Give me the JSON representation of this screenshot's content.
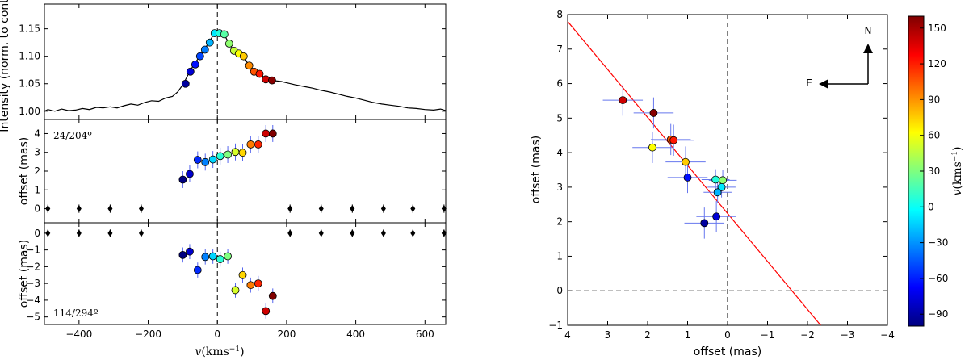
{
  "chart_data": [
    {
      "type": "line",
      "panel": "spectrum",
      "ylabel": "Intensity (norm. to cont.)",
      "xlim": [
        -500,
        660
      ],
      "ylim": [
        0.985,
        1.195
      ],
      "yticks": [
        1.0,
        1.05,
        1.1,
        1.15
      ],
      "ytick_labels": [
        "1.00",
        "1.05",
        "1.10",
        "1.15"
      ],
      "vline_x": 0,
      "profile": [
        [
          -500,
          1.0
        ],
        [
          -490,
          1.003
        ],
        [
          -470,
          1.0
        ],
        [
          -450,
          1.004
        ],
        [
          -430,
          1.001
        ],
        [
          -410,
          1.002
        ],
        [
          -390,
          1.005
        ],
        [
          -370,
          1.003
        ],
        [
          -350,
          1.007
        ],
        [
          -330,
          1.006
        ],
        [
          -310,
          1.008
        ],
        [
          -290,
          1.006
        ],
        [
          -270,
          1.01
        ],
        [
          -250,
          1.013
        ],
        [
          -230,
          1.011
        ],
        [
          -210,
          1.016
        ],
        [
          -190,
          1.019
        ],
        [
          -170,
          1.018
        ],
        [
          -150,
          1.024
        ],
        [
          -130,
          1.027
        ],
        [
          -115,
          1.035
        ],
        [
          -100,
          1.048
        ],
        [
          -90,
          1.06
        ],
        [
          -80,
          1.072
        ],
        [
          -65,
          1.088
        ],
        [
          -50,
          1.1
        ],
        [
          -35,
          1.115
        ],
        [
          -20,
          1.13
        ],
        [
          -8,
          1.143
        ],
        [
          5,
          1.145
        ],
        [
          18,
          1.142
        ],
        [
          32,
          1.125
        ],
        [
          48,
          1.11
        ],
        [
          62,
          1.106
        ],
        [
          76,
          1.1
        ],
        [
          90,
          1.084
        ],
        [
          105,
          1.075
        ],
        [
          120,
          1.068
        ],
        [
          140,
          1.06
        ],
        [
          160,
          1.056
        ],
        [
          185,
          1.054
        ],
        [
          205,
          1.051
        ],
        [
          225,
          1.048
        ],
        [
          250,
          1.045
        ],
        [
          275,
          1.042
        ],
        [
          300,
          1.038
        ],
        [
          325,
          1.035
        ],
        [
          350,
          1.031
        ],
        [
          375,
          1.027
        ],
        [
          400,
          1.024
        ],
        [
          425,
          1.02
        ],
        [
          450,
          1.016
        ],
        [
          475,
          1.013
        ],
        [
          500,
          1.011
        ],
        [
          525,
          1.009
        ],
        [
          550,
          1.006
        ],
        [
          575,
          1.005
        ],
        [
          600,
          1.003
        ],
        [
          625,
          1.002
        ],
        [
          645,
          1.004
        ],
        [
          660,
          1.001
        ]
      ],
      "points": [
        [
          -92,
          1.05
        ],
        [
          -78,
          1.072
        ],
        [
          -64,
          1.085
        ],
        [
          -50,
          1.1
        ],
        [
          -36,
          1.112
        ],
        [
          -22,
          1.125
        ],
        [
          -8,
          1.142
        ],
        [
          6,
          1.142
        ],
        [
          20,
          1.14
        ],
        [
          34,
          1.123
        ],
        [
          48,
          1.11
        ],
        [
          62,
          1.105
        ],
        [
          76,
          1.1
        ],
        [
          92,
          1.083
        ],
        [
          106,
          1.072
        ],
        [
          122,
          1.068
        ],
        [
          140,
          1.058
        ],
        [
          158,
          1.056
        ]
      ],
      "point_v": [
        -92,
        -78,
        -64,
        -50,
        -36,
        -22,
        -8,
        6,
        20,
        34,
        48,
        62,
        76,
        92,
        106,
        122,
        140,
        158
      ]
    },
    {
      "type": "scatter",
      "panel": "offset-24",
      "annotation": "24/204º",
      "ylabel": "offset (mas)",
      "ylim": [
        -0.75,
        4.75
      ],
      "yticks": [
        0,
        1,
        2,
        3,
        4
      ],
      "ytick_labels": [
        "0",
        "1",
        "2",
        "3",
        "4"
      ],
      "vline_x": 0,
      "points": [
        {
          "v": -100,
          "y": 1.55,
          "err": 0.45
        },
        {
          "v": -80,
          "y": 1.85,
          "err": 0.45
        },
        {
          "v": -57,
          "y": 2.6,
          "err": 0.45
        },
        {
          "v": -35,
          "y": 2.48,
          "err": 0.45
        },
        {
          "v": -13,
          "y": 2.62,
          "err": 0.45
        },
        {
          "v": 8,
          "y": 2.8,
          "err": 0.45
        },
        {
          "v": 30,
          "y": 2.88,
          "err": 0.45
        },
        {
          "v": 52,
          "y": 3.02,
          "err": 0.45
        },
        {
          "v": 73,
          "y": 2.98,
          "err": 0.45
        },
        {
          "v": 96,
          "y": 3.42,
          "err": 0.45
        },
        {
          "v": 118,
          "y": 3.42,
          "err": 0.45
        },
        {
          "v": 140,
          "y": 4.0,
          "err": 0.45
        },
        {
          "v": 160,
          "y": 4.0,
          "err": 0.45
        }
      ],
      "continuum_points": [
        {
          "v": -490,
          "y": 0,
          "err": 0.22
        },
        {
          "v": -400,
          "y": 0,
          "err": 0.22
        },
        {
          "v": -310,
          "y": 0,
          "err": 0.22
        },
        {
          "v": -220,
          "y": 0,
          "err": 0.22
        },
        {
          "v": 210,
          "y": 0,
          "err": 0.22
        },
        {
          "v": 300,
          "y": 0,
          "err": 0.22
        },
        {
          "v": 390,
          "y": 0,
          "err": 0.22
        },
        {
          "v": 480,
          "y": 0,
          "err": 0.22
        },
        {
          "v": 565,
          "y": 0,
          "err": 0.22
        },
        {
          "v": 655,
          "y": 0,
          "err": 0.22
        }
      ]
    },
    {
      "type": "scatter",
      "panel": "offset-114",
      "annotation": "114/294º",
      "ylabel": "offset (mas)",
      "xlabel": "v (kms⁻¹)",
      "xlabel_italic": "v",
      "xlabel_rest": "(kms",
      "xlabel_sup": "−1",
      "xlabel_close": ")",
      "ylim": [
        -5.45,
        0.62
      ],
      "yticks": [
        0,
        -1,
        -2,
        -3,
        -4,
        -5
      ],
      "ytick_labels": [
        "0",
        "−1",
        "−2",
        "−3",
        "−4",
        "−5"
      ],
      "xticks": [
        -400,
        -200,
        0,
        200,
        400,
        600
      ],
      "xtick_labels": [
        "−400",
        "−200",
        "0",
        "200",
        "400",
        "600"
      ],
      "vline_x": 0,
      "points": [
        {
          "v": -100,
          "y": -1.3,
          "err": 0.45
        },
        {
          "v": -80,
          "y": -1.1,
          "err": 0.45
        },
        {
          "v": -57,
          "y": -2.2,
          "err": 0.45
        },
        {
          "v": -35,
          "y": -1.42,
          "err": 0.45
        },
        {
          "v": -13,
          "y": -1.38,
          "err": 0.45
        },
        {
          "v": 8,
          "y": -1.55,
          "err": 0.45
        },
        {
          "v": 30,
          "y": -1.38,
          "err": 0.45
        },
        {
          "v": 52,
          "y": -3.4,
          "err": 0.45
        },
        {
          "v": 73,
          "y": -2.5,
          "err": 0.45
        },
        {
          "v": 96,
          "y": -3.1,
          "err": 0.45
        },
        {
          "v": 118,
          "y": -3.0,
          "err": 0.45
        },
        {
          "v": 140,
          "y": -4.65,
          "err": 0.45
        },
        {
          "v": 160,
          "y": -3.75,
          "err": 0.45
        }
      ],
      "continuum_points": [
        {
          "v": -490,
          "y": 0,
          "err": 0.22
        },
        {
          "v": -400,
          "y": 0,
          "err": 0.22
        },
        {
          "v": -310,
          "y": 0,
          "err": 0.22
        },
        {
          "v": -220,
          "y": 0,
          "err": 0.22
        },
        {
          "v": 210,
          "y": 0,
          "err": 0.22
        },
        {
          "v": 300,
          "y": 0,
          "err": 0.22
        },
        {
          "v": 390,
          "y": 0,
          "err": 0.22
        },
        {
          "v": 480,
          "y": 0,
          "err": 0.22
        },
        {
          "v": 565,
          "y": 0,
          "err": 0.22
        },
        {
          "v": 655,
          "y": 0,
          "err": 0.22
        }
      ]
    },
    {
      "type": "scatter",
      "panel": "sky-map",
      "xlabel": "offset (mas)",
      "ylabel": "offset (mas)",
      "xlim": [
        4,
        -4
      ],
      "ylim": [
        -1,
        8
      ],
      "xticks": [
        4,
        3,
        2,
        1,
        0,
        -1,
        -2,
        -3,
        -4
      ],
      "xtick_labels": [
        "4",
        "3",
        "2",
        "1",
        "0",
        "−1",
        "−2",
        "−3",
        "−4"
      ],
      "yticks": [
        -1,
        0,
        1,
        2,
        3,
        4,
        5,
        6,
        7,
        8
      ],
      "ytick_labels": [
        "−1",
        "0",
        "1",
        "2",
        "3",
        "4",
        "5",
        "6",
        "7",
        "8"
      ],
      "fit_line": {
        "x": [
          4.0,
          -2.33
        ],
        "y": [
          7.8,
          -1.0
        ],
        "color": "#ff0000"
      },
      "dashed_zero_lines": true,
      "compass": {
        "north": "N",
        "east": "E"
      },
      "points": [
        {
          "x": 2.62,
          "y": 5.52,
          "v": 140,
          "xerr": 0.5,
          "yerr": 0.45
        },
        {
          "x": 1.85,
          "y": 5.15,
          "v": 158,
          "xerr": 0.5,
          "yerr": 0.45
        },
        {
          "x": 1.42,
          "y": 4.38,
          "v": 106,
          "xerr": 0.5,
          "yerr": 0.45
        },
        {
          "x": 1.35,
          "y": 4.36,
          "v": 122,
          "xerr": 0.5,
          "yerr": 0.45
        },
        {
          "x": 1.88,
          "y": 4.15,
          "v": 62,
          "xerr": 0.5,
          "yerr": 0.45
        },
        {
          "x": 1.05,
          "y": 3.73,
          "v": 76,
          "xerr": 0.5,
          "yerr": 0.45
        },
        {
          "x": 1.0,
          "y": 3.28,
          "v": -64,
          "xerr": 0.5,
          "yerr": 0.45
        },
        {
          "x": 0.3,
          "y": 3.22,
          "v": 6,
          "xerr": 0.35,
          "yerr": 0.3
        },
        {
          "x": 0.12,
          "y": 3.2,
          "v": 34,
          "xerr": 0.35,
          "yerr": 0.3
        },
        {
          "x": 0.15,
          "y": 3.0,
          "v": -8,
          "xerr": 0.35,
          "yerr": 0.3
        },
        {
          "x": 0.25,
          "y": 2.85,
          "v": -22,
          "xerr": 0.35,
          "yerr": 0.3
        },
        {
          "x": 0.28,
          "y": 2.15,
          "v": -78,
          "xerr": 0.5,
          "yerr": 0.45
        },
        {
          "x": 0.58,
          "y": 1.96,
          "v": -92,
          "xerr": 0.5,
          "yerr": 0.45
        }
      ]
    },
    {
      "type": "colorbar",
      "label": "v(kms⁻¹)",
      "label_italic": "v",
      "label_rest": "(kms",
      "label_sup": "−1",
      "label_close": ")",
      "range": [
        -100,
        160
      ],
      "ticks": [
        150,
        120,
        90,
        60,
        30,
        0,
        -30,
        -60,
        -90
      ],
      "tick_labels": [
        "150",
        "120",
        "90",
        "60",
        "30",
        "0",
        "−30",
        "−60",
        "−90"
      ],
      "colormap": "jet"
    }
  ]
}
